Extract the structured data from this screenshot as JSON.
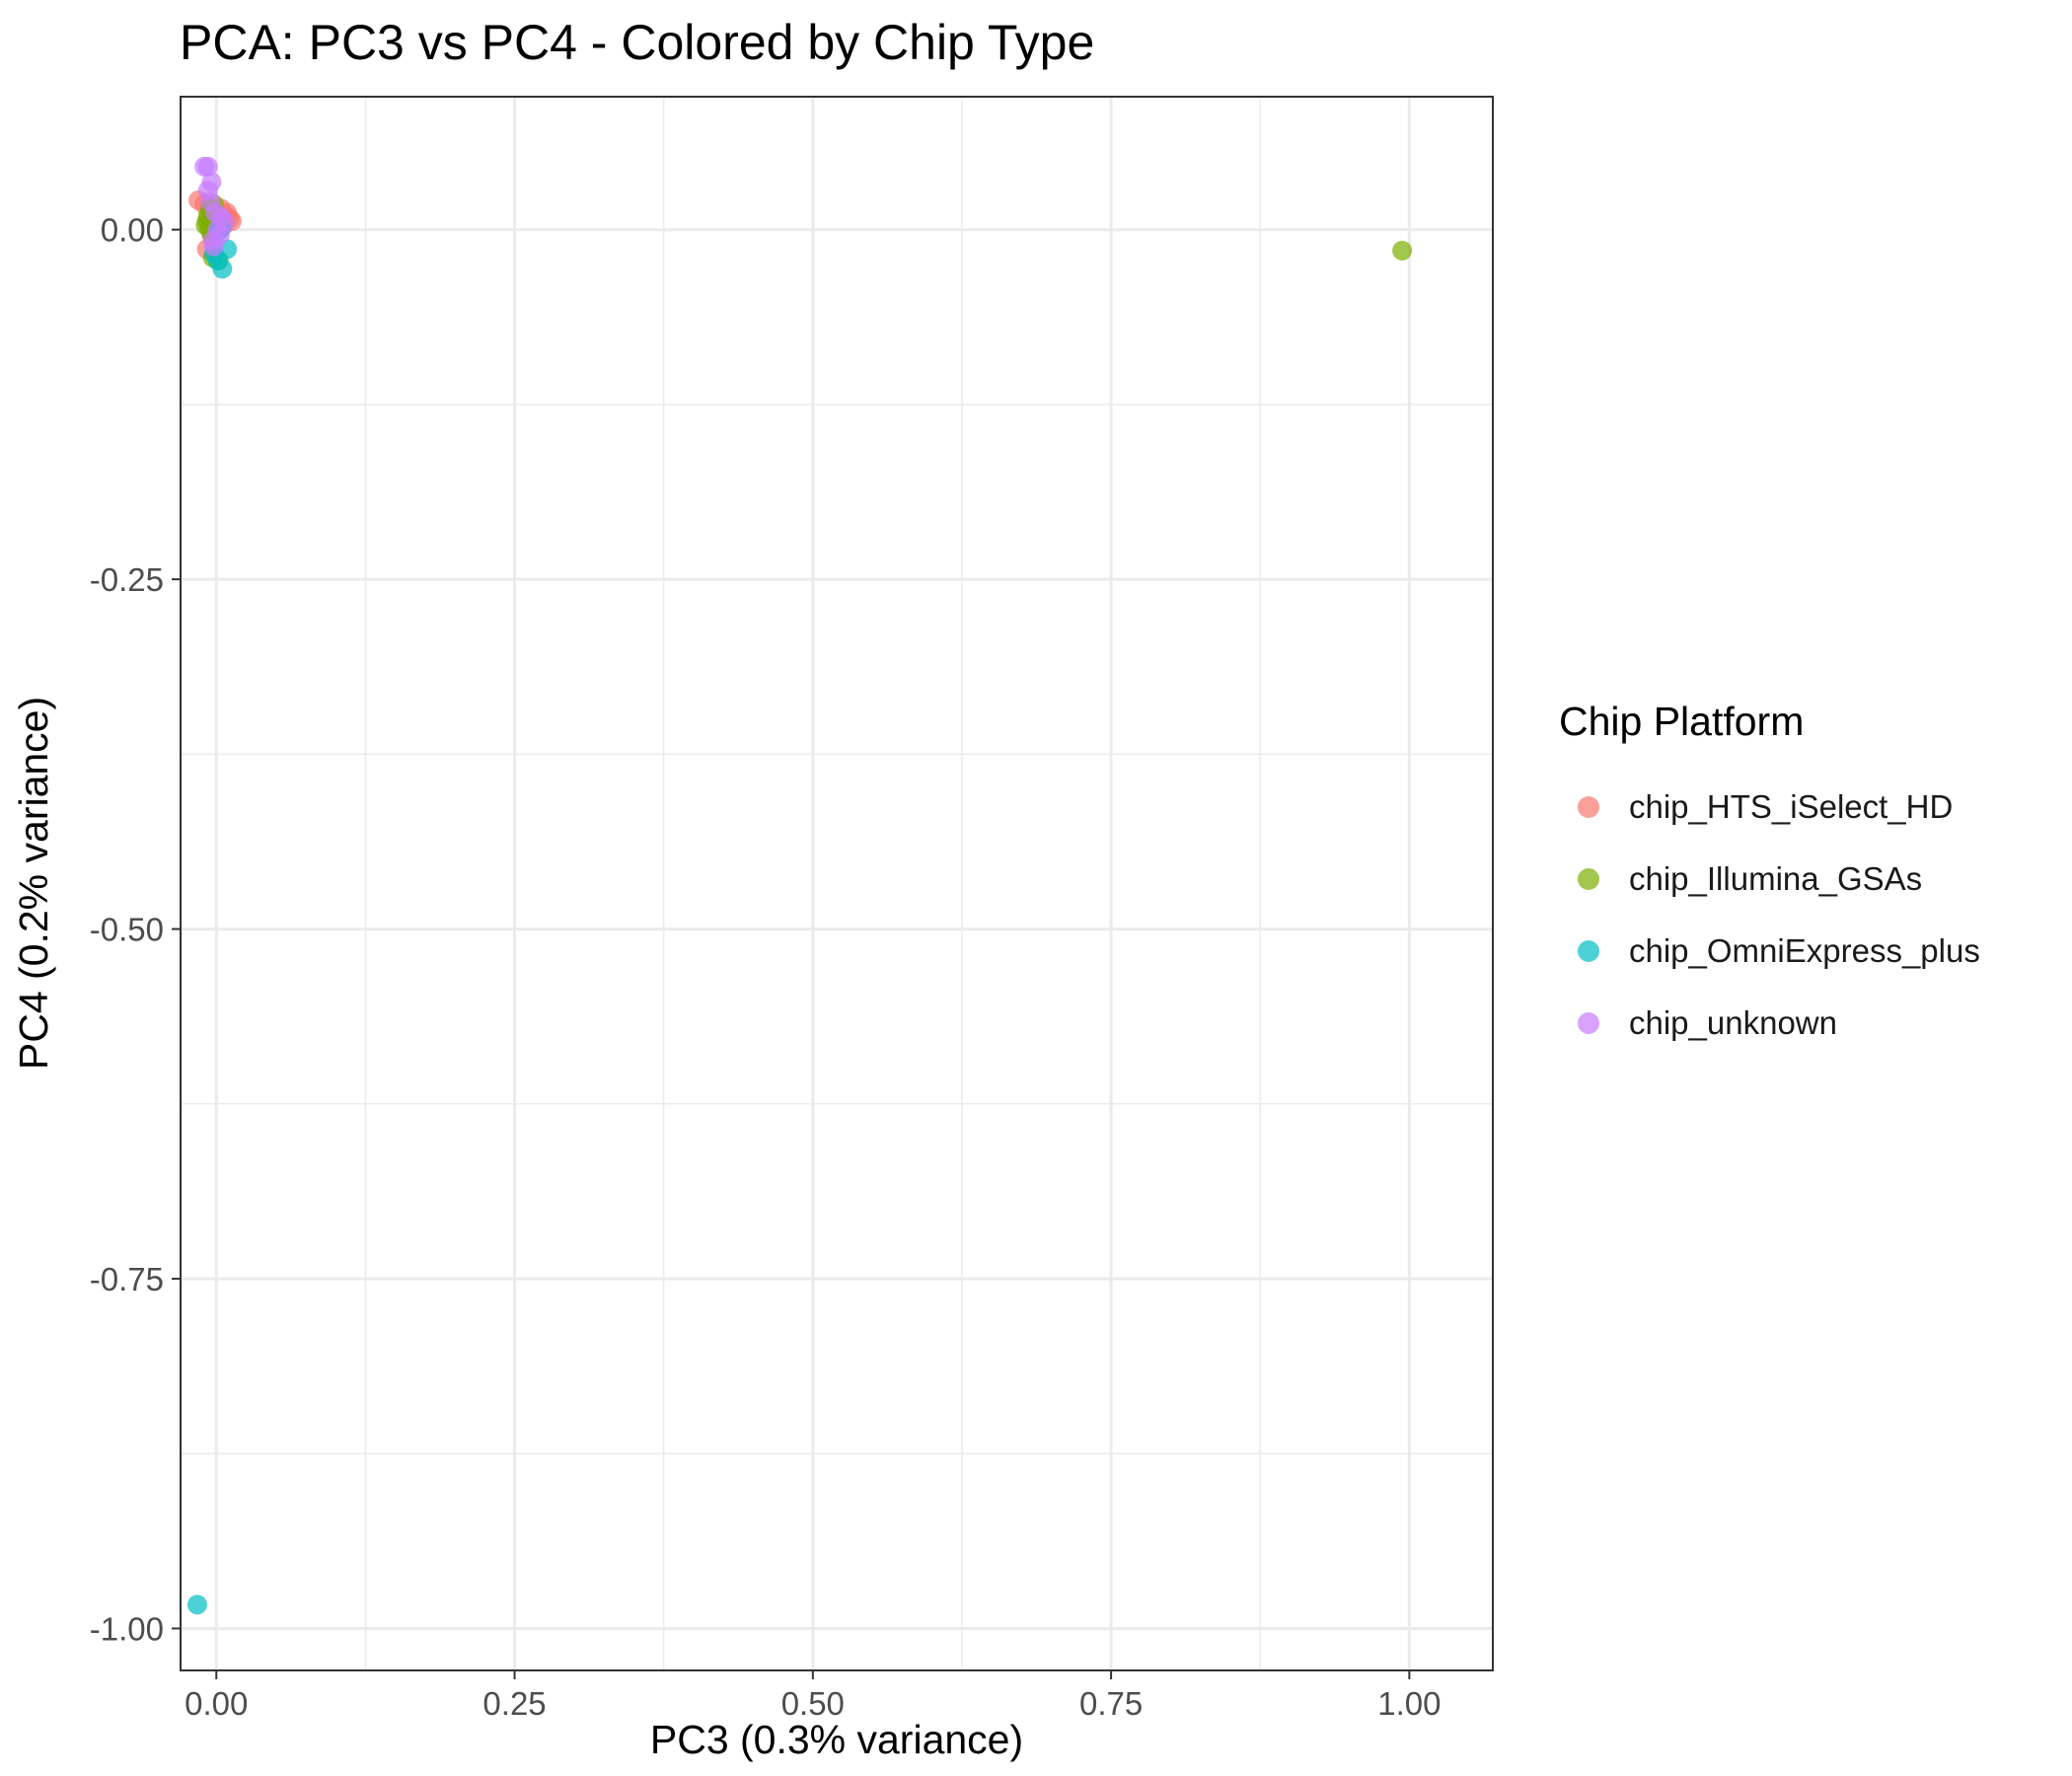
{
  "chart_data": {
    "type": "scatter",
    "title": "PCA: PC3 vs PC4 - Colored by Chip Type",
    "xlabel": "PC3 (0.3% variance)",
    "ylabel": "PC4 (0.2% variance)",
    "xlim": [
      -0.03,
      1.07
    ],
    "ylim": [
      -1.03,
      0.095
    ],
    "xticks": [
      0.0,
      0.25,
      0.5,
      0.75,
      1.0
    ],
    "xtick_labels": [
      "0.00",
      "0.25",
      "0.50",
      "0.75",
      "1.00"
    ],
    "yticks": [
      0.0,
      -0.25,
      -0.5,
      -0.75,
      -1.0
    ],
    "ytick_labels": [
      "0.00",
      "-0.25",
      "-0.50",
      "-0.75",
      "-1.00"
    ],
    "grid": true,
    "legend_title": "Chip Platform",
    "legend_position": "right",
    "series": [
      {
        "name": "chip_HTS_iSelect_HD",
        "color": "#F8766D",
        "points": [
          [
            -0.015,
            0.021
          ],
          [
            -0.01,
            0.018
          ],
          [
            -0.005,
            0.013
          ],
          [
            0.0,
            0.011
          ],
          [
            0.004,
            0.015
          ],
          [
            0.007,
            0.01
          ],
          [
            0.011,
            0.008
          ],
          [
            0.013,
            0.006
          ],
          [
            0.002,
            0.002
          ],
          [
            -0.004,
            -0.004
          ],
          [
            -0.008,
            -0.014
          ],
          [
            0.006,
            0.003
          ],
          [
            0.009,
            0.012
          ]
        ]
      },
      {
        "name": "chip_Illumina_GSAs",
        "color": "#7CAE00",
        "points": [
          [
            0.994,
            -0.015
          ],
          [
            -0.002,
            0.018
          ],
          [
            -0.005,
            0.015
          ],
          [
            -0.007,
            0.01
          ],
          [
            -0.008,
            0.006
          ],
          [
            -0.009,
            0.003
          ],
          [
            -0.006,
            0.001
          ],
          [
            -0.004,
            -0.003
          ],
          [
            -0.002,
            0.0
          ],
          [
            0.0,
            0.004
          ],
          [
            -0.003,
            -0.02
          ],
          [
            0.002,
            -0.022
          ]
        ]
      },
      {
        "name": "chip_OmniExpress_plus",
        "color": "#00BFC4",
        "points": [
          [
            -0.016,
            -0.983
          ],
          [
            0.002,
            -0.001
          ],
          [
            0.004,
            0.001
          ],
          [
            0.009,
            -0.014
          ],
          [
            0.005,
            -0.028
          ],
          [
            -0.002,
            -0.017
          ],
          [
            0.001,
            -0.022
          ]
        ]
      },
      {
        "name": "chip_unknown",
        "color": "#C77CFF",
        "points": [
          [
            -0.01,
            0.045
          ],
          [
            -0.007,
            0.045
          ],
          [
            -0.004,
            0.034
          ],
          [
            -0.007,
            0.028
          ],
          [
            -0.005,
            0.02
          ],
          [
            -0.001,
            0.012
          ],
          [
            0.004,
            0.009
          ],
          [
            0.007,
            0.005
          ],
          [
            0.001,
            0.0
          ],
          [
            0.003,
            -0.004
          ],
          [
            -0.003,
            -0.008
          ],
          [
            -0.002,
            -0.012
          ]
        ]
      }
    ]
  }
}
